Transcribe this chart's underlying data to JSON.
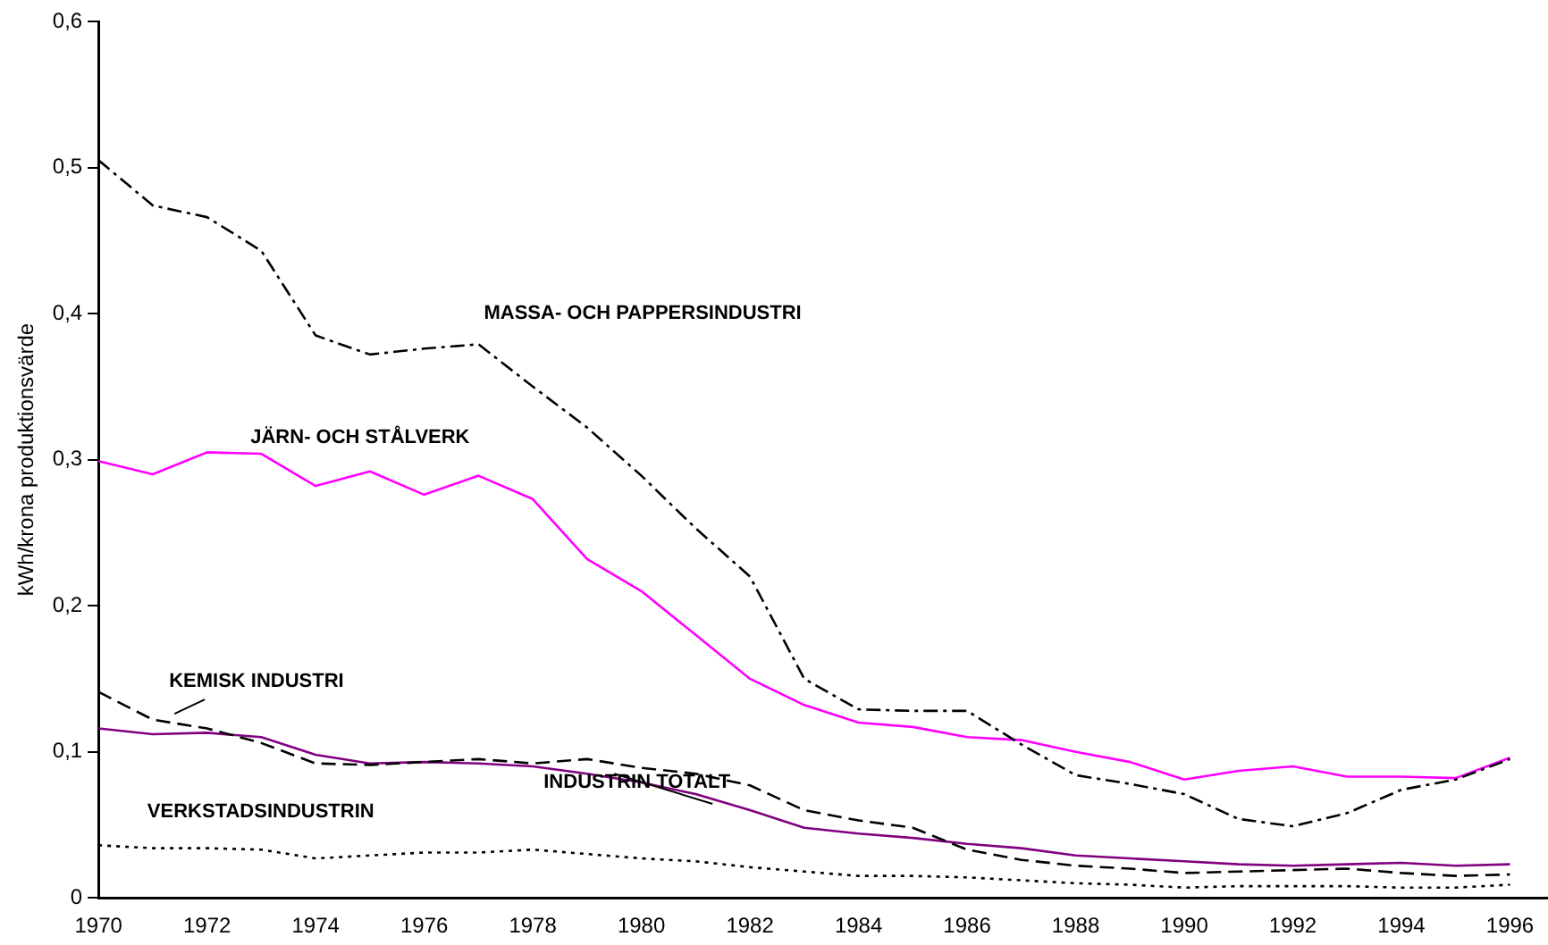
{
  "chart_data": {
    "type": "line",
    "ylabel": "kWh/krona produktionsvärde",
    "x": [
      1970,
      1971,
      1972,
      1973,
      1974,
      1975,
      1976,
      1977,
      1978,
      1979,
      1980,
      1981,
      1982,
      1983,
      1984,
      1985,
      1986,
      1987,
      1988,
      1989,
      1990,
      1991,
      1992,
      1993,
      1994,
      1995,
      1996
    ],
    "xlim": [
      1970,
      1996.7
    ],
    "xticks": [
      1970,
      1972,
      1974,
      1976,
      1978,
      1980,
      1982,
      1984,
      1986,
      1988,
      1990,
      1992,
      1994,
      1996
    ],
    "ylim": [
      0,
      0.6
    ],
    "yticks": [
      0,
      {
        "value": 0.1,
        "label": "0,1"
      },
      {
        "value": 0.2,
        "label": "0,2"
      },
      {
        "value": 0.3,
        "label": "0,3"
      },
      {
        "value": 0.4,
        "label": "0,4"
      },
      {
        "value": 0.5,
        "label": "0,5"
      },
      {
        "value": 0.6,
        "label": "0,6"
      }
    ],
    "grid": false,
    "legend": false,
    "marker": "none",
    "series": [
      {
        "name": "MASSA- OCH PAPPERSINDUSTRI",
        "color": "#000000",
        "line_style": "dashdot",
        "values": [
          0.505,
          0.474,
          0.466,
          0.443,
          0.385,
          0.372,
          0.376,
          0.379,
          0.35,
          0.322,
          0.289,
          0.253,
          0.22,
          0.15,
          0.129,
          0.128,
          0.128,
          0.105,
          0.084,
          0.078,
          0.071,
          0.054,
          0.049,
          0.058,
          0.074,
          0.081,
          0.095
        ]
      },
      {
        "name": "JÄRN- OCH STÅLVERK",
        "color": "#ff00ff",
        "line_style": "solid",
        "values": [
          0.299,
          0.29,
          0.305,
          0.304,
          0.282,
          0.292,
          0.276,
          0.289,
          0.273,
          0.232,
          0.21,
          0.18,
          0.15,
          0.132,
          0.12,
          0.117,
          0.11,
          0.108,
          0.1,
          0.093,
          0.081,
          0.087,
          0.09,
          0.083,
          0.083,
          0.082,
          0.096
        ]
      },
      {
        "name": "KEMISK INDUSTRI",
        "color": "#000000",
        "line_style": "dashed",
        "values": [
          0.141,
          0.122,
          0.116,
          0.106,
          0.092,
          0.091,
          0.093,
          0.095,
          0.092,
          0.095,
          0.089,
          0.085,
          0.077,
          0.06,
          0.053,
          0.048,
          0.033,
          0.026,
          0.022,
          0.02,
          0.017,
          0.018,
          0.019,
          0.02,
          0.017,
          0.015,
          0.016
        ]
      },
      {
        "name": "INDUSTRIN TOTALT",
        "color": "#800080",
        "line_style": "solid",
        "values": [
          0.116,
          0.112,
          0.113,
          0.11,
          0.098,
          0.092,
          0.093,
          0.092,
          0.09,
          0.085,
          0.079,
          0.071,
          0.06,
          0.048,
          0.044,
          0.041,
          0.037,
          0.034,
          0.029,
          0.027,
          0.025,
          0.023,
          0.022,
          0.023,
          0.024,
          0.022,
          0.023
        ]
      },
      {
        "name": "VERKSTADSINDUSTRIN",
        "color": "#000000",
        "line_style": "dotted",
        "values": [
          0.036,
          0.034,
          0.034,
          0.033,
          0.027,
          0.029,
          0.031,
          0.031,
          0.033,
          0.03,
          0.027,
          0.025,
          0.021,
          0.018,
          0.015,
          0.015,
          0.014,
          0.012,
          0.01,
          0.009,
          0.007,
          0.008,
          0.008,
          0.008,
          0.007,
          0.007,
          0.009
        ]
      }
    ]
  }
}
